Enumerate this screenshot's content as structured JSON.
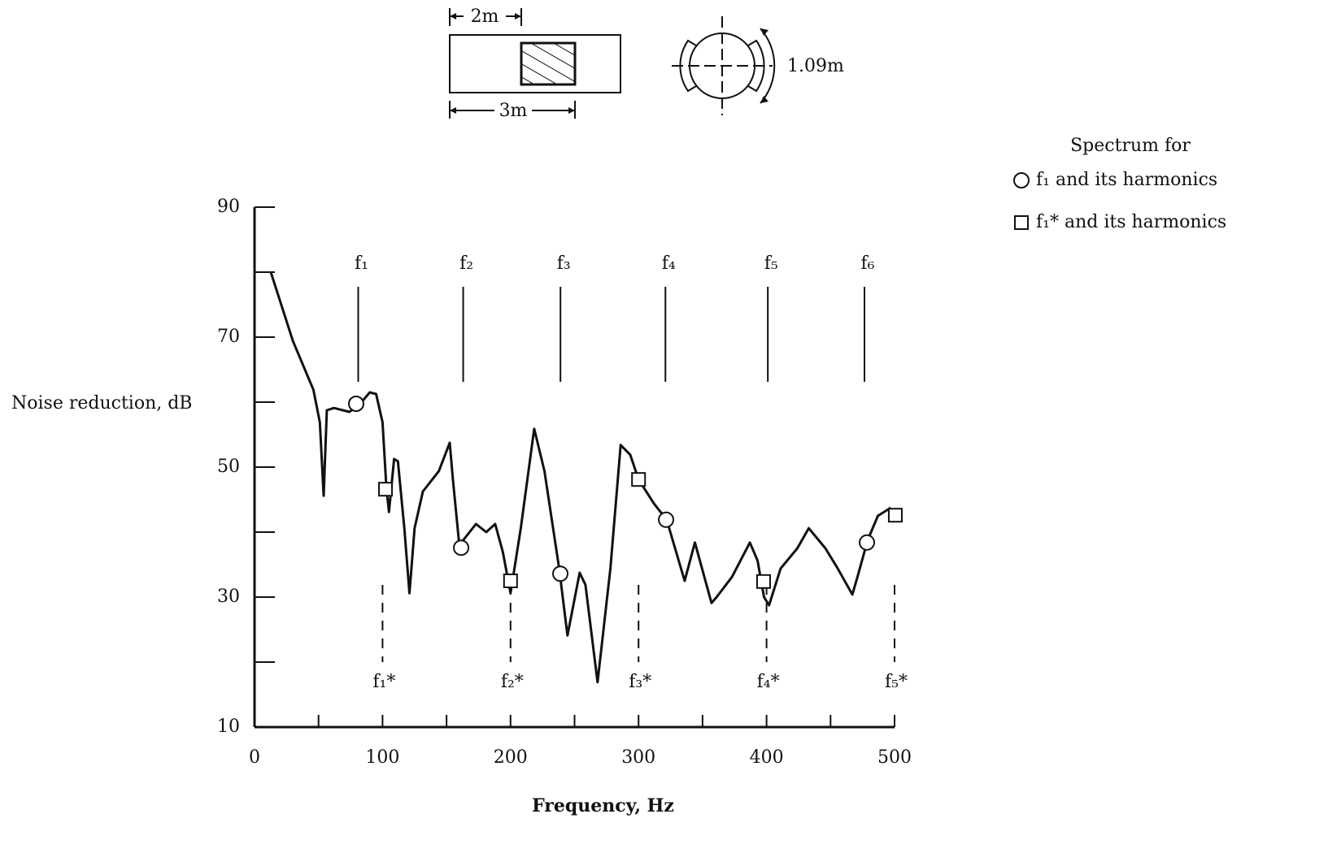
{
  "chart_data": {
    "type": "line",
    "x_label": "Frequency, Hz",
    "y_label": "Noise reduction, dB",
    "xlim": [
      0,
      500
    ],
    "ylim": [
      10,
      90
    ],
    "xticks": [
      0,
      100,
      200,
      300,
      400,
      500
    ],
    "yticks": [
      10,
      30,
      50,
      70,
      90
    ],
    "x_minor_ticks": [
      50,
      150,
      250,
      350,
      450
    ],
    "y_minor_ticks": [
      20,
      40,
      60,
      80
    ],
    "legend_title": "Spectrum for",
    "legend": "upper right",
    "series": [
      {
        "marker": "none",
        "color": "#111111",
        "x": [
          12.7,
          30,
          46,
          51,
          54,
          56.5,
          62,
          74,
          81,
          90,
          95,
          100,
          103,
          105,
          109,
          112,
          117,
          121,
          125,
          131.5,
          144,
          152.5,
          155,
          160,
          173,
          181,
          188,
          194,
          200,
          208,
          218.5,
          226.5,
          238,
          244.5,
          254,
          258.5,
          268,
          278,
          286,
          293.5,
          300,
          312,
          322,
          336,
          344,
          357,
          361,
          373,
          387,
          393,
          398,
          402,
          411,
          424,
          433,
          446,
          455,
          467,
          471,
          479,
          487,
          497
        ],
        "values": [
          80,
          69.4,
          61.9,
          56.9,
          45.6,
          58.75,
          59.1,
          58.5,
          59.4,
          61.5,
          61.25,
          56.9,
          46.9,
          43.1,
          51.25,
          50.9,
          40.6,
          30.6,
          40.6,
          46.25,
          49.4,
          53.75,
          48,
          38,
          41.25,
          40,
          41.25,
          36.9,
          30.6,
          40.6,
          55.9,
          49.4,
          34.4,
          24.1,
          33.75,
          31.9,
          16.9,
          34.4,
          53.4,
          51.9,
          48.1,
          44.4,
          41.9,
          32.5,
          38.4,
          29.1,
          30,
          33.1,
          38.4,
          35.6,
          30,
          28.75,
          34.4,
          37.5,
          40.6,
          37.5,
          34.6,
          30.4,
          33.1,
          38.75,
          42.5,
          43.75
        ]
      },
      {
        "name": "f₁ and its harmonics",
        "marker": "circle",
        "color": "#111111",
        "x": [
          79.4,
          161.4,
          238.9,
          321.5,
          478.4
        ],
        "values": [
          59.75,
          37.6,
          33.6,
          41.9,
          38.4
        ]
      },
      {
        "name": "f₁* and its harmonics",
        "marker": "square",
        "color": "#111111",
        "x": [
          102.3,
          200,
          300,
          397.7,
          500.6
        ],
        "values": [
          46.6,
          32.5,
          48.1,
          32.4,
          42.6
        ]
      }
    ],
    "frequency_markers": [
      {
        "label": "f₁",
        "x": 81,
        "style": "solid"
      },
      {
        "label": "f₂",
        "x": 163,
        "style": "solid"
      },
      {
        "label": "f₃",
        "x": 239,
        "style": "solid"
      },
      {
        "label": "f₄",
        "x": 321,
        "style": "solid"
      },
      {
        "label": "f₅",
        "x": 401,
        "style": "solid"
      },
      {
        "label": "f₆",
        "x": 476.5,
        "style": "solid"
      },
      {
        "label": "f₁*",
        "x": 100,
        "style": "dashed"
      },
      {
        "label": "f₂*",
        "x": 200,
        "style": "dashed"
      },
      {
        "label": "f₃*",
        "x": 300,
        "style": "dashed"
      },
      {
        "label": "f₄*",
        "x": 400,
        "style": "dashed"
      },
      {
        "label": "f₅*",
        "x": 500,
        "style": "dashed"
      }
    ]
  },
  "diagram": {
    "width_label": "2m",
    "length_label": "3m",
    "diameter_label": "1.09m"
  }
}
